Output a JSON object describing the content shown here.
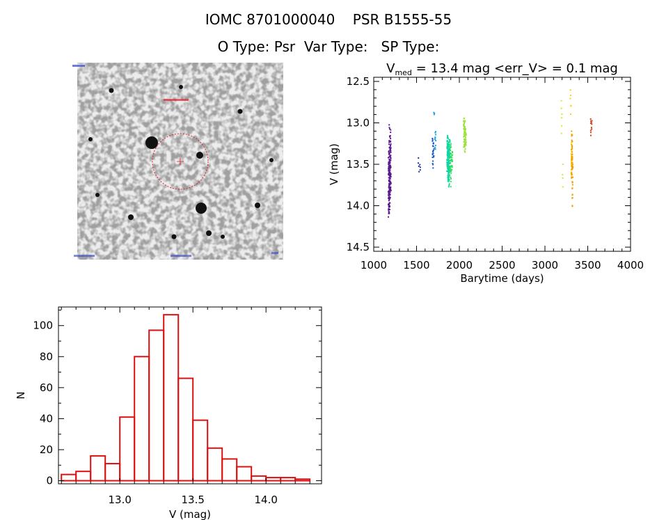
{
  "header": {
    "title_line1": "IOMC 8701000040    PSR B1555-55",
    "title_line2": "O Type: Psr  Var Type:   SP Type:"
  },
  "image_panel": {
    "ring_color": "#e0202a",
    "marker_color": "#e0202a"
  },
  "chart_data": [
    {
      "type": "scatter",
      "title_v": "V",
      "title_sub": "med",
      "title_rest": " = 13.4 mag <err_V> = 0.1 mag",
      "xlabel": "Barytime (days)",
      "ylabel": "V (mag)",
      "xlim": [
        1000,
        4000
      ],
      "ylim": [
        14.55,
        12.45
      ],
      "xticks": [
        1000,
        1500,
        2000,
        2500,
        3000,
        3500,
        4000
      ],
      "yticks": [
        12.5,
        13.0,
        13.5,
        14.0,
        14.5
      ],
      "series": [
        {
          "name": "g1",
          "color": "#5a1a8c",
          "x": [
            1175,
            1182,
            1188,
            1193,
            1198
          ],
          "ymin": [
            13.35,
            13.0,
            13.3,
            13.15,
            13.02
          ],
          "ymax": [
            14.2,
            14.15,
            14.05,
            13.95,
            13.85
          ],
          "n": [
            40,
            55,
            45,
            30,
            25
          ]
        },
        {
          "name": "g2",
          "color": "#2030a0",
          "x": [
            1525,
            1540
          ],
          "ymin": [
            13.4,
            13.5
          ],
          "ymax": [
            13.6,
            13.58
          ],
          "n": [
            4,
            3
          ]
        },
        {
          "name": "g3",
          "color": "#1a5ad0",
          "x": [
            1690,
            1700
          ],
          "ymin": [
            13.1,
            13.2
          ],
          "ymax": [
            13.58,
            13.45
          ],
          "n": [
            15,
            10
          ]
        },
        {
          "name": "g4",
          "color": "#1aa0e0",
          "x": [
            1705,
            1720
          ],
          "ymin": [
            12.87,
            13.05
          ],
          "ymax": [
            12.9,
            13.35
          ],
          "n": [
            3,
            10
          ]
        },
        {
          "name": "g5",
          "color": "#10d6a0",
          "x": [
            1860,
            1870,
            1880,
            1890
          ],
          "ymin": [
            13.12,
            13.15,
            13.18,
            13.2
          ],
          "ymax": [
            13.6,
            13.75,
            13.8,
            13.65
          ],
          "n": [
            40,
            50,
            45,
            30
          ]
        },
        {
          "name": "g6",
          "color": "#30e050",
          "x": [
            1900,
            1915
          ],
          "ymin": [
            13.2,
            13.3
          ],
          "ymax": [
            13.78,
            13.6
          ],
          "n": [
            20,
            12
          ]
        },
        {
          "name": "g7",
          "color": "#9ce040",
          "x": [
            2055,
            2065,
            2075
          ],
          "ymin": [
            12.88,
            12.95,
            13.05
          ],
          "ymax": [
            13.35,
            13.4,
            13.3
          ],
          "n": [
            25,
            25,
            15
          ]
        },
        {
          "name": "g8",
          "color": "#e0e030",
          "x": [
            3195,
            3210
          ],
          "ymin": [
            12.65,
            13.5
          ],
          "ymax": [
            13.2,
            13.78
          ],
          "n": [
            6,
            4
          ]
        },
        {
          "name": "g9",
          "color": "#ffd000",
          "x": [
            3300,
            3310
          ],
          "ymin": [
            12.6,
            13.2
          ],
          "ymax": [
            12.9,
            13.7
          ],
          "n": [
            6,
            20
          ]
        },
        {
          "name": "g10",
          "color": "#f0a000",
          "x": [
            3315,
            3322
          ],
          "ymin": [
            13.1,
            13.25
          ],
          "ymax": [
            13.7,
            14.05
          ],
          "n": [
            35,
            25
          ]
        },
        {
          "name": "g11",
          "color": "#d04020",
          "x": [
            3535,
            3545
          ],
          "ymin": [
            12.9,
            12.95
          ],
          "ymax": [
            13.2,
            13.1
          ],
          "n": [
            6,
            5
          ]
        }
      ]
    },
    {
      "type": "bar",
      "subtype": "histogram",
      "xlabel": "V (mag)",
      "ylabel": "N",
      "xlim": [
        12.58,
        14.38
      ],
      "ylim": [
        -2,
        112
      ],
      "bin_width": 0.1,
      "bin_left_edges": [
        12.6,
        12.7,
        12.8,
        12.9,
        13.0,
        13.1,
        13.2,
        13.3,
        13.4,
        13.5,
        13.6,
        13.7,
        13.8,
        13.9,
        14.0,
        14.1,
        14.2
      ],
      "values": [
        4,
        6,
        16,
        11,
        41,
        80,
        97,
        107,
        66,
        39,
        21,
        14,
        9,
        3,
        2,
        2,
        1
      ],
      "xticks": [
        13.0,
        13.5,
        14.0
      ],
      "xtick_labels": [
        "13.0",
        "13.5",
        "14.0"
      ],
      "yticks": [
        0,
        20,
        40,
        60,
        80,
        100
      ],
      "bar_color": "#dd1111"
    }
  ]
}
